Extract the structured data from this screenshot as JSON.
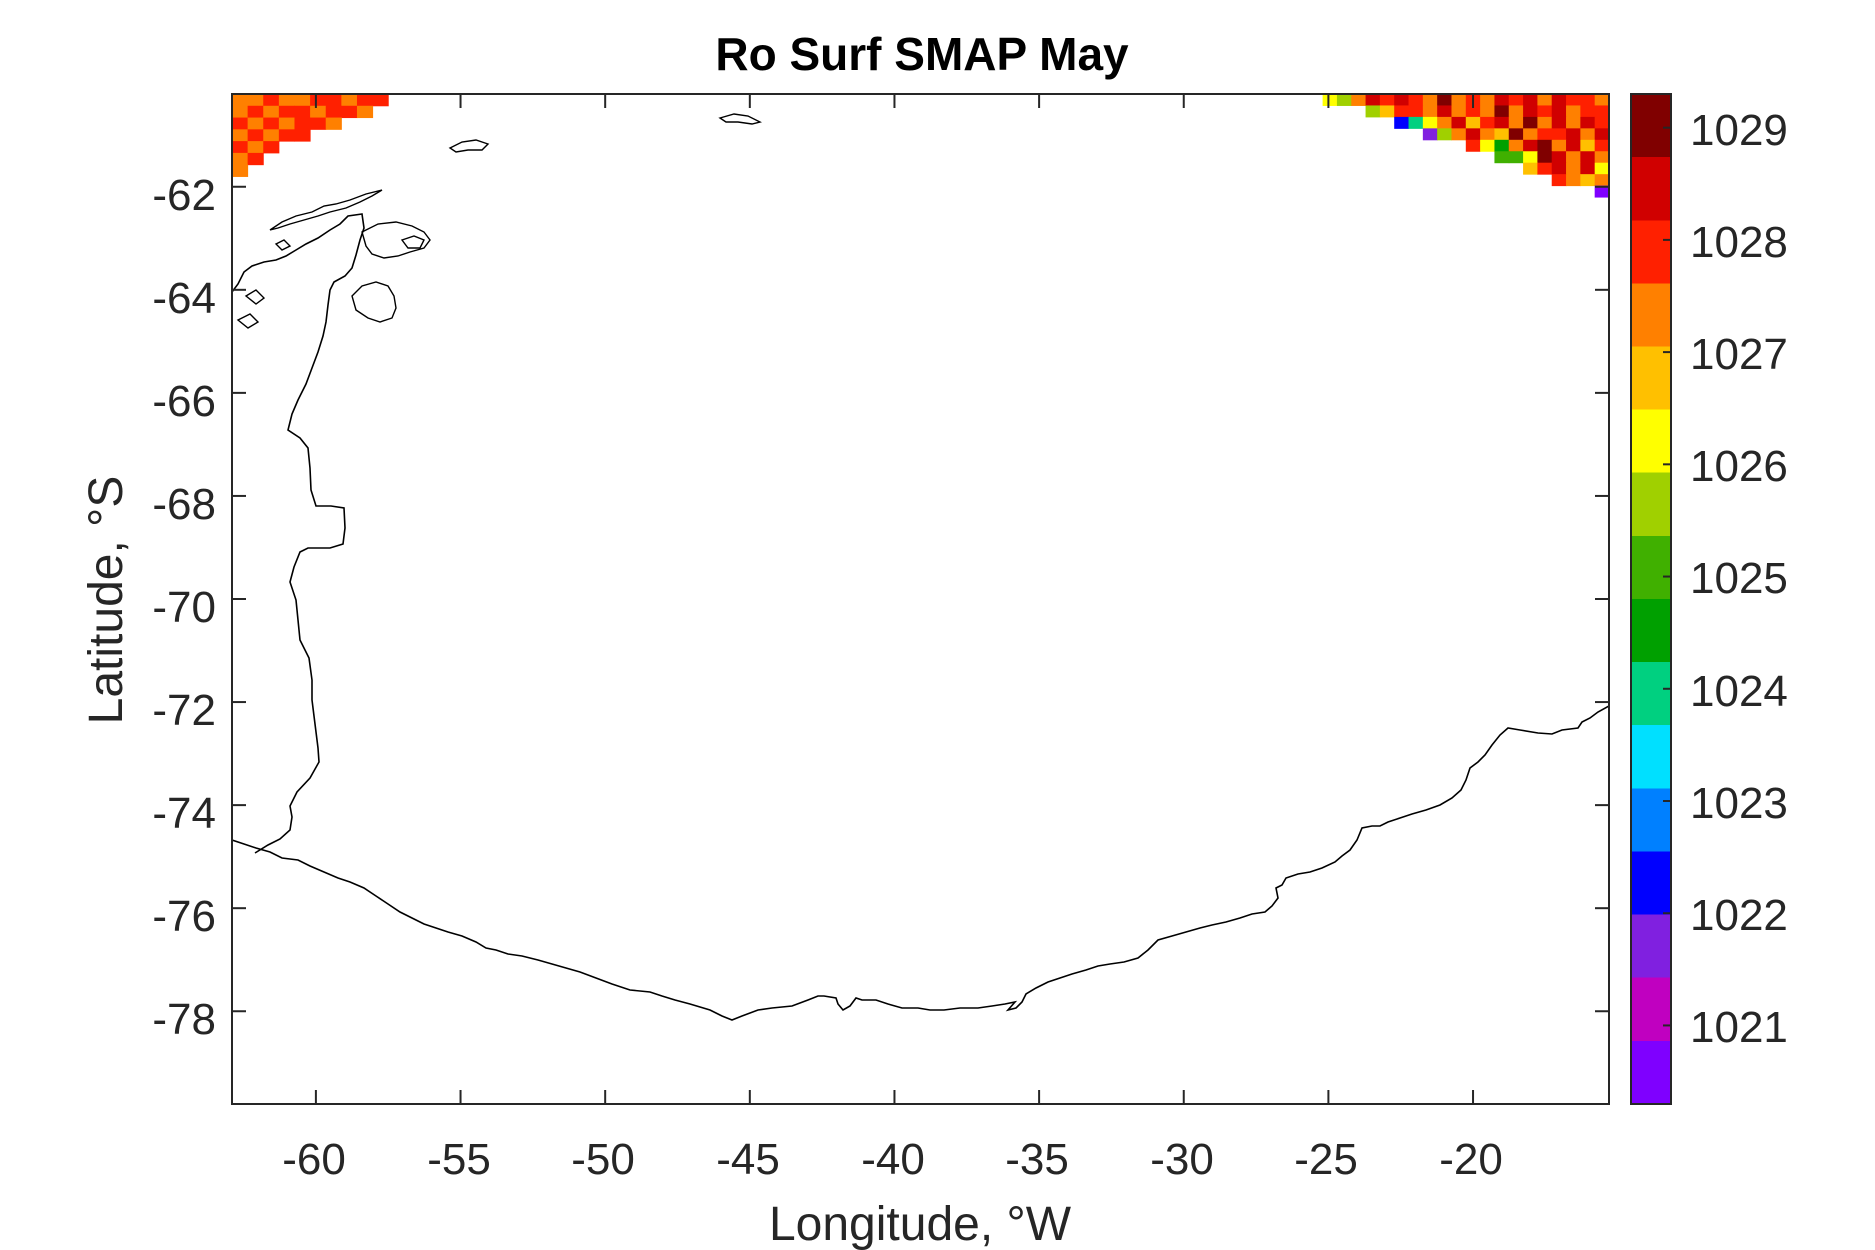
{
  "chart_data": {
    "type": "heatmap",
    "title": "Ro Surf SMAP May",
    "xlabel": "Longitude, °W",
    "ylabel": "Latitude, °S",
    "xlim": [
      -62.9,
      -15.3
    ],
    "ylim": [
      -79.8,
      -60.2
    ],
    "x_ticks": [
      "-60",
      "-55",
      "-50",
      "-45",
      "-40",
      "-35",
      "-30",
      "-25",
      "-20"
    ],
    "x_tick_values": [
      -60,
      -55,
      -50,
      -45,
      -40,
      -35,
      -30,
      -25,
      -20
    ],
    "y_ticks": [
      "-62",
      "-64",
      "-66",
      "-68",
      "-70",
      "-72",
      "-74",
      "-76",
      "-78"
    ],
    "y_tick_values": [
      -62,
      -64,
      -66,
      -68,
      -70,
      -72,
      -74,
      -76,
      -78
    ],
    "colorbar": {
      "range": [
        1020.3,
        1029.3
      ],
      "ticks": [
        "1021",
        "1022",
        "1023",
        "1024",
        "1025",
        "1026",
        "1027",
        "1028",
        "1029"
      ],
      "tick_values": [
        1021,
        1022,
        1023,
        1024,
        1025,
        1026,
        1027,
        1028,
        1029
      ],
      "colormap": [
        "#7f00ff",
        "#c000c0",
        "#8020e0",
        "#0000ff",
        "#0080ff",
        "#00e0ff",
        "#00d080",
        "#00a000",
        "#40b000",
        "#a0d000",
        "#ffff00",
        "#ffc000",
        "#ff8000",
        "#ff2000",
        "#d00000",
        "#800000"
      ]
    },
    "regions": [
      {
        "name": "",
        "lon_range": [
          -62.9,
          -57.5
        ],
        "lat_range": [
          -61.8,
          -60.2
        ],
        "values": [
          [
            1027.3,
            1027.6,
            1027.9,
            1027.2,
            1027.5,
            1028.0,
            1027.8,
            1027.4,
            1027.9,
            1028.1
          ],
          [
            1027.5,
            1027.9,
            1027.2,
            1027.8,
            1028.0,
            1027.4,
            1027.7,
            1028.1,
            1027.6
          ],
          [
            1027.8,
            1027.3,
            1027.9,
            1027.6,
            1028.1,
            1027.7,
            1027.5
          ],
          [
            1027.6,
            1028.0,
            1027.4,
            1027.9,
            1027.7
          ],
          [
            1027.9,
            1027.5,
            1028.0
          ],
          [
            1027.4,
            1027.8
          ],
          [
            1027.2
          ]
        ]
      },
      {
        "name": "",
        "lon_range": [
          -25.2,
          -15.3
        ],
        "lat_range": [
          -62.2,
          -60.2
        ],
        "values": [
          [
            1026.2,
            1025.4,
            1027.2,
            1028.3,
            1027.8,
            1028.6,
            1027.9,
            1027.4,
            1028.9,
            1027.6,
            1028.1,
            1027.3,
            1028.4,
            1027.7,
            1028.2,
            1027.5,
            1028.7,
            1027.9,
            1028.0,
            1027.6
          ],
          [
            1025.6,
            1026.5,
            1027.8,
            1028.1,
            1027.2,
            1028.5,
            1027.6,
            1028.0,
            1027.3,
            1028.8,
            1027.5,
            1028.2,
            1027.9,
            1028.6,
            1027.4,
            1028.1,
            1027.7
          ],
          [
            1022.3,
            1024.1,
            1026.3,
            1027.4,
            1028.2,
            1026.8,
            1027.9,
            1028.4,
            1027.1,
            1028.9,
            1027.6,
            1028.3,
            1027.2,
            1028.7,
            1027.8
          ],
          [
            1021.6,
            1025.9,
            1027.1,
            1028.5,
            1027.4,
            1026.6,
            1028.9,
            1027.3,
            1028.1,
            1027.7,
            1028.6,
            1027.2,
            1028.4
          ],
          [
            1028.1,
            1026.4,
            1024.3,
            1027.5,
            1028.7,
            1028.9,
            1027.2,
            1028.3,
            1026.9,
            1027.8
          ],
          [
            1025.2,
            1024.8,
            1026.1,
            1028.8,
            1028.3,
            1027.6,
            1028.2,
            1027.4
          ],
          [
            1026.7,
            1027.9,
            1028.2,
            1027.3,
            1028.6,
            1026.4
          ],
          [
            1028.1,
            1027.5,
            1026.8,
            1027.2
          ],
          [
            1020.7
          ]
        ]
      }
    ]
  }
}
